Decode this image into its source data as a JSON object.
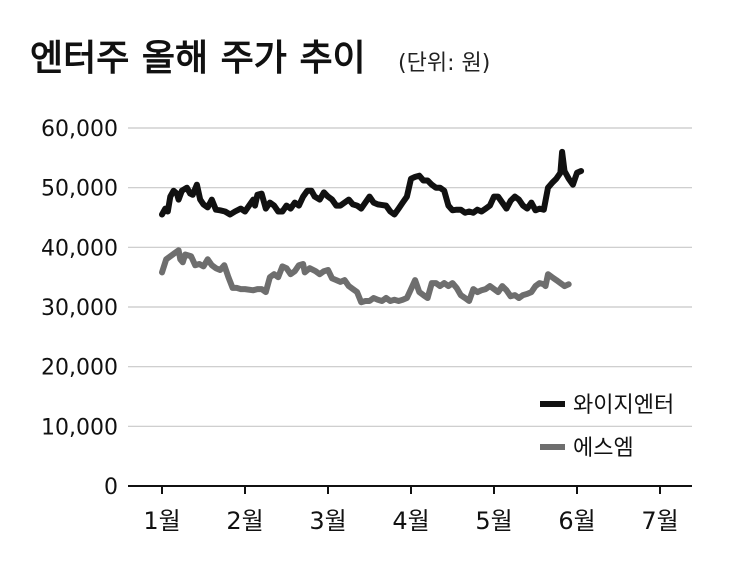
{
  "chart_data": {
    "type": "line",
    "title": "엔터주 올해 주가 추이",
    "unit_note": "(단위: 원)",
    "y_ticks": [
      "60,000",
      "50,000",
      "40,000",
      "30,000",
      "20,000",
      "10,000",
      "0"
    ],
    "y_tick_values": [
      60000,
      50000,
      40000,
      30000,
      20000,
      10000,
      0
    ],
    "x_ticks": [
      "1월",
      "2월",
      "3월",
      "4월",
      "5월",
      "6월",
      "7월"
    ],
    "x_tick_values": [
      1,
      2,
      3,
      4,
      5,
      6,
      7
    ],
    "ylim": [
      0,
      60000
    ],
    "xlim": [
      1,
      7
    ],
    "grid": true,
    "legend_position": "bottom-right",
    "series": [
      {
        "name": "와이지엔터",
        "color": "#111111",
        "points": [
          [
            1.0,
            45500
          ],
          [
            1.04,
            46500
          ],
          [
            1.07,
            46000
          ],
          [
            1.1,
            48500
          ],
          [
            1.14,
            49500
          ],
          [
            1.18,
            49000
          ],
          [
            1.2,
            48000
          ],
          [
            1.24,
            49500
          ],
          [
            1.3,
            50000
          ],
          [
            1.34,
            49000
          ],
          [
            1.37,
            48800
          ],
          [
            1.42,
            50500
          ],
          [
            1.46,
            48000
          ],
          [
            1.5,
            47200
          ],
          [
            1.55,
            46700
          ],
          [
            1.6,
            48000
          ],
          [
            1.65,
            46300
          ],
          [
            1.7,
            46200
          ],
          [
            1.76,
            46000
          ],
          [
            1.82,
            45500
          ],
          [
            1.88,
            46000
          ],
          [
            1.95,
            46500
          ],
          [
            2.0,
            46000
          ],
          [
            2.05,
            47000
          ],
          [
            2.1,
            48000
          ],
          [
            2.12,
            47000
          ],
          [
            2.15,
            48800
          ],
          [
            2.2,
            49000
          ],
          [
            2.25,
            46500
          ],
          [
            2.3,
            47500
          ],
          [
            2.35,
            47000
          ],
          [
            2.4,
            46000
          ],
          [
            2.45,
            46000
          ],
          [
            2.5,
            47000
          ],
          [
            2.55,
            46500
          ],
          [
            2.6,
            47500
          ],
          [
            2.65,
            47000
          ],
          [
            2.7,
            48500
          ],
          [
            2.75,
            49500
          ],
          [
            2.8,
            49500
          ],
          [
            2.84,
            48500
          ],
          [
            2.9,
            48000
          ],
          [
            2.95,
            49200
          ],
          [
            3.0,
            48500
          ],
          [
            3.05,
            48000
          ],
          [
            3.1,
            47000
          ],
          [
            3.15,
            47000
          ],
          [
            3.2,
            47500
          ],
          [
            3.25,
            48000
          ],
          [
            3.3,
            47200
          ],
          [
            3.35,
            47000
          ],
          [
            3.4,
            46500
          ],
          [
            3.5,
            48500
          ],
          [
            3.55,
            47500
          ],
          [
            3.6,
            47200
          ],
          [
            3.7,
            47000
          ],
          [
            3.75,
            46000
          ],
          [
            3.8,
            45500
          ],
          [
            3.85,
            46500
          ],
          [
            3.9,
            47500
          ],
          [
            3.95,
            48500
          ],
          [
            4.0,
            51500
          ],
          [
            4.05,
            51800
          ],
          [
            4.1,
            52000
          ],
          [
            4.15,
            51200
          ],
          [
            4.2,
            51200
          ],
          [
            4.25,
            50500
          ],
          [
            4.3,
            50000
          ],
          [
            4.35,
            50000
          ],
          [
            4.4,
            49500
          ],
          [
            4.45,
            47000
          ],
          [
            4.5,
            46200
          ],
          [
            4.55,
            46300
          ],
          [
            4.6,
            46300
          ],
          [
            4.65,
            45800
          ],
          [
            4.7,
            46000
          ],
          [
            4.75,
            45800
          ],
          [
            4.8,
            46300
          ],
          [
            4.85,
            46000
          ],
          [
            4.9,
            46500
          ],
          [
            4.95,
            47000
          ],
          [
            5.0,
            48500
          ],
          [
            5.05,
            48500
          ],
          [
            5.1,
            47500
          ],
          [
            5.15,
            46500
          ],
          [
            5.2,
            47800
          ],
          [
            5.25,
            48500
          ],
          [
            5.3,
            48000
          ],
          [
            5.35,
            47000
          ],
          [
            5.4,
            46500
          ],
          [
            5.45,
            47500
          ],
          [
            5.5,
            46200
          ],
          [
            5.55,
            46500
          ],
          [
            5.6,
            46300
          ],
          [
            5.65,
            50000
          ],
          [
            5.7,
            50800
          ],
          [
            5.75,
            51500
          ],
          [
            5.8,
            52500
          ],
          [
            5.82,
            56000
          ],
          [
            5.85,
            52800
          ],
          [
            5.9,
            51500
          ],
          [
            5.95,
            50500
          ],
          [
            6.0,
            52500
          ],
          [
            6.05,
            52800
          ]
        ]
      },
      {
        "name": "에스엠",
        "color": "#6e6e6e",
        "points": [
          [
            1.0,
            35800
          ],
          [
            1.05,
            38000
          ],
          [
            1.1,
            38500
          ],
          [
            1.15,
            39000
          ],
          [
            1.2,
            39500
          ],
          [
            1.22,
            38000
          ],
          [
            1.25,
            37500
          ],
          [
            1.28,
            38800
          ],
          [
            1.35,
            38500
          ],
          [
            1.4,
            37000
          ],
          [
            1.45,
            37200
          ],
          [
            1.5,
            36800
          ],
          [
            1.55,
            38000
          ],
          [
            1.6,
            37000
          ],
          [
            1.65,
            36500
          ],
          [
            1.7,
            36200
          ],
          [
            1.75,
            37000
          ],
          [
            1.8,
            35000
          ],
          [
            1.85,
            33200
          ],
          [
            1.9,
            33200
          ],
          [
            1.95,
            33000
          ],
          [
            2.0,
            33000
          ],
          [
            2.1,
            32800
          ],
          [
            2.15,
            33000
          ],
          [
            2.2,
            33000
          ],
          [
            2.25,
            32500
          ],
          [
            2.3,
            35000
          ],
          [
            2.35,
            35500
          ],
          [
            2.4,
            35000
          ],
          [
            2.45,
            36800
          ],
          [
            2.5,
            36500
          ],
          [
            2.55,
            35500
          ],
          [
            2.6,
            36000
          ],
          [
            2.65,
            37000
          ],
          [
            2.7,
            37200
          ],
          [
            2.72,
            35800
          ],
          [
            2.78,
            36500
          ],
          [
            2.85,
            36000
          ],
          [
            2.9,
            35500
          ],
          [
            2.95,
            36000
          ],
          [
            3.0,
            36200
          ],
          [
            3.05,
            34800
          ],
          [
            3.1,
            34500
          ],
          [
            3.15,
            34200
          ],
          [
            3.2,
            34500
          ],
          [
            3.25,
            33500
          ],
          [
            3.3,
            33000
          ],
          [
            3.35,
            32500
          ],
          [
            3.4,
            30800
          ],
          [
            3.45,
            31000
          ],
          [
            3.5,
            31000
          ],
          [
            3.55,
            31500
          ],
          [
            3.6,
            31200
          ],
          [
            3.65,
            31000
          ],
          [
            3.7,
            31500
          ],
          [
            3.75,
            31000
          ],
          [
            3.8,
            31200
          ],
          [
            3.85,
            31000
          ],
          [
            3.9,
            31200
          ],
          [
            3.95,
            31500
          ],
          [
            4.0,
            33000
          ],
          [
            4.05,
            34500
          ],
          [
            4.1,
            32500
          ],
          [
            4.15,
            32000
          ],
          [
            4.2,
            31500
          ],
          [
            4.25,
            34000
          ],
          [
            4.3,
            34000
          ],
          [
            4.35,
            33500
          ],
          [
            4.4,
            34000
          ],
          [
            4.45,
            33500
          ],
          [
            4.5,
            34000
          ],
          [
            4.55,
            33200
          ],
          [
            4.6,
            32000
          ],
          [
            4.65,
            31500
          ],
          [
            4.7,
            31000
          ],
          [
            4.75,
            33000
          ],
          [
            4.8,
            32500
          ],
          [
            4.85,
            32800
          ],
          [
            4.9,
            33000
          ],
          [
            4.95,
            33500
          ],
          [
            5.0,
            33000
          ],
          [
            5.05,
            32500
          ],
          [
            5.1,
            33500
          ],
          [
            5.15,
            32800
          ],
          [
            5.2,
            31800
          ],
          [
            5.25,
            32000
          ],
          [
            5.3,
            31500
          ],
          [
            5.35,
            32000
          ],
          [
            5.4,
            32200
          ],
          [
            5.45,
            32500
          ],
          [
            5.5,
            33500
          ],
          [
            5.55,
            34000
          ],
          [
            5.6,
            33800
          ],
          [
            5.62,
            33500
          ],
          [
            5.65,
            35500
          ],
          [
            5.7,
            35000
          ],
          [
            5.75,
            34500
          ],
          [
            5.8,
            34000
          ],
          [
            5.85,
            33500
          ],
          [
            5.9,
            33800
          ]
        ]
      }
    ]
  }
}
